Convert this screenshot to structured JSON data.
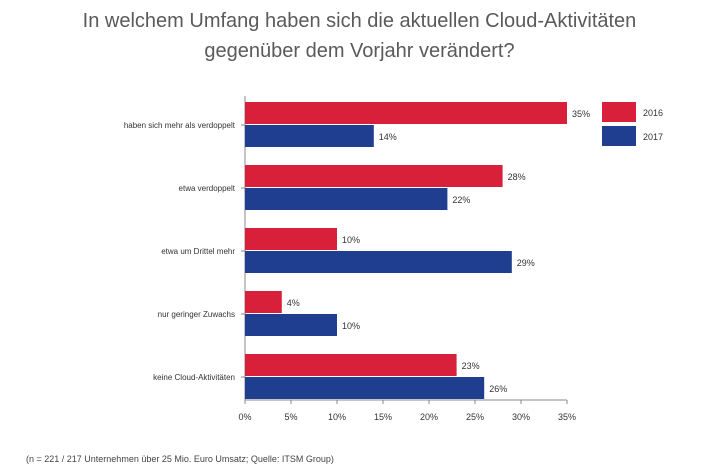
{
  "chart_data": {
    "type": "bar",
    "orientation": "horizontal",
    "title_lines": [
      "In welchem Umfang haben sich die aktuellen Cloud-Aktivitäten",
      "gegenüber dem Vorjahr verändert?"
    ],
    "categories": [
      "haben sich mehr als verdoppelt",
      "etwa verdoppelt",
      "etwa um Drittel mehr",
      "nur geringer Zuwachs",
      "keine Cloud-Aktivitäten"
    ],
    "series": [
      {
        "name": "2016",
        "color": "#d8203a",
        "values": [
          35,
          28,
          10,
          4,
          23
        ],
        "labels": [
          "35%",
          "28%",
          "10%",
          "4%",
          "23%"
        ]
      },
      {
        "name": "2017",
        "color": "#1f3e8f",
        "values": [
          14,
          22,
          29,
          10,
          26
        ],
        "labels": [
          "14%",
          "22%",
          "29%",
          "10%",
          "26%"
        ]
      }
    ],
    "xlim": [
      0,
      35
    ],
    "xticks": [
      "0%",
      "5%",
      "10%",
      "15%",
      "20%",
      "25%",
      "30%",
      "35%"
    ],
    "legend_position": "top-right",
    "grid": false
  },
  "footnote": "(n = 221 / 217 Unternehmen über 25 Mio. Euro Umsatz; Quelle: ITSM Group)"
}
